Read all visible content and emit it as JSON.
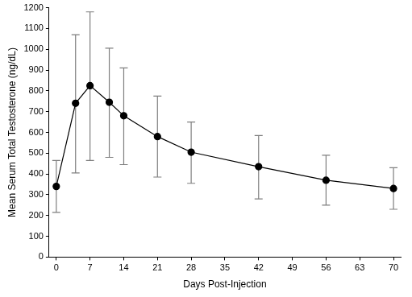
{
  "chart_data": {
    "type": "line",
    "x_label": "Days Post-Injection",
    "y_label": "Mean Serum Total Testosterone (ng/dL)",
    "x": [
      0,
      4,
      7,
      11,
      14,
      21,
      28,
      42,
      56,
      70
    ],
    "series": [
      {
        "name": "Mean Serum Total Testosterone",
        "color": "#000000",
        "marker": "circle",
        "line_style": "solid",
        "values": [
          340,
          740,
          825,
          745,
          680,
          580,
          505,
          435,
          370,
          330
        ],
        "error_low": [
          215,
          405,
          465,
          480,
          445,
          385,
          355,
          280,
          250,
          230
        ],
        "error_high": [
          465,
          1070,
          1180,
          1005,
          910,
          775,
          650,
          585,
          490,
          430
        ]
      }
    ],
    "xlim": [
      -1.5,
      71.5
    ],
    "xticks": [
      0,
      7,
      14,
      21,
      28,
      35,
      42,
      49,
      56,
      63,
      70
    ],
    "ylim": [
      0,
      1200
    ],
    "yticks": [
      0,
      100,
      200,
      300,
      400,
      500,
      600,
      700,
      800,
      900,
      1000,
      1100,
      1200
    ],
    "grid": false
  }
}
